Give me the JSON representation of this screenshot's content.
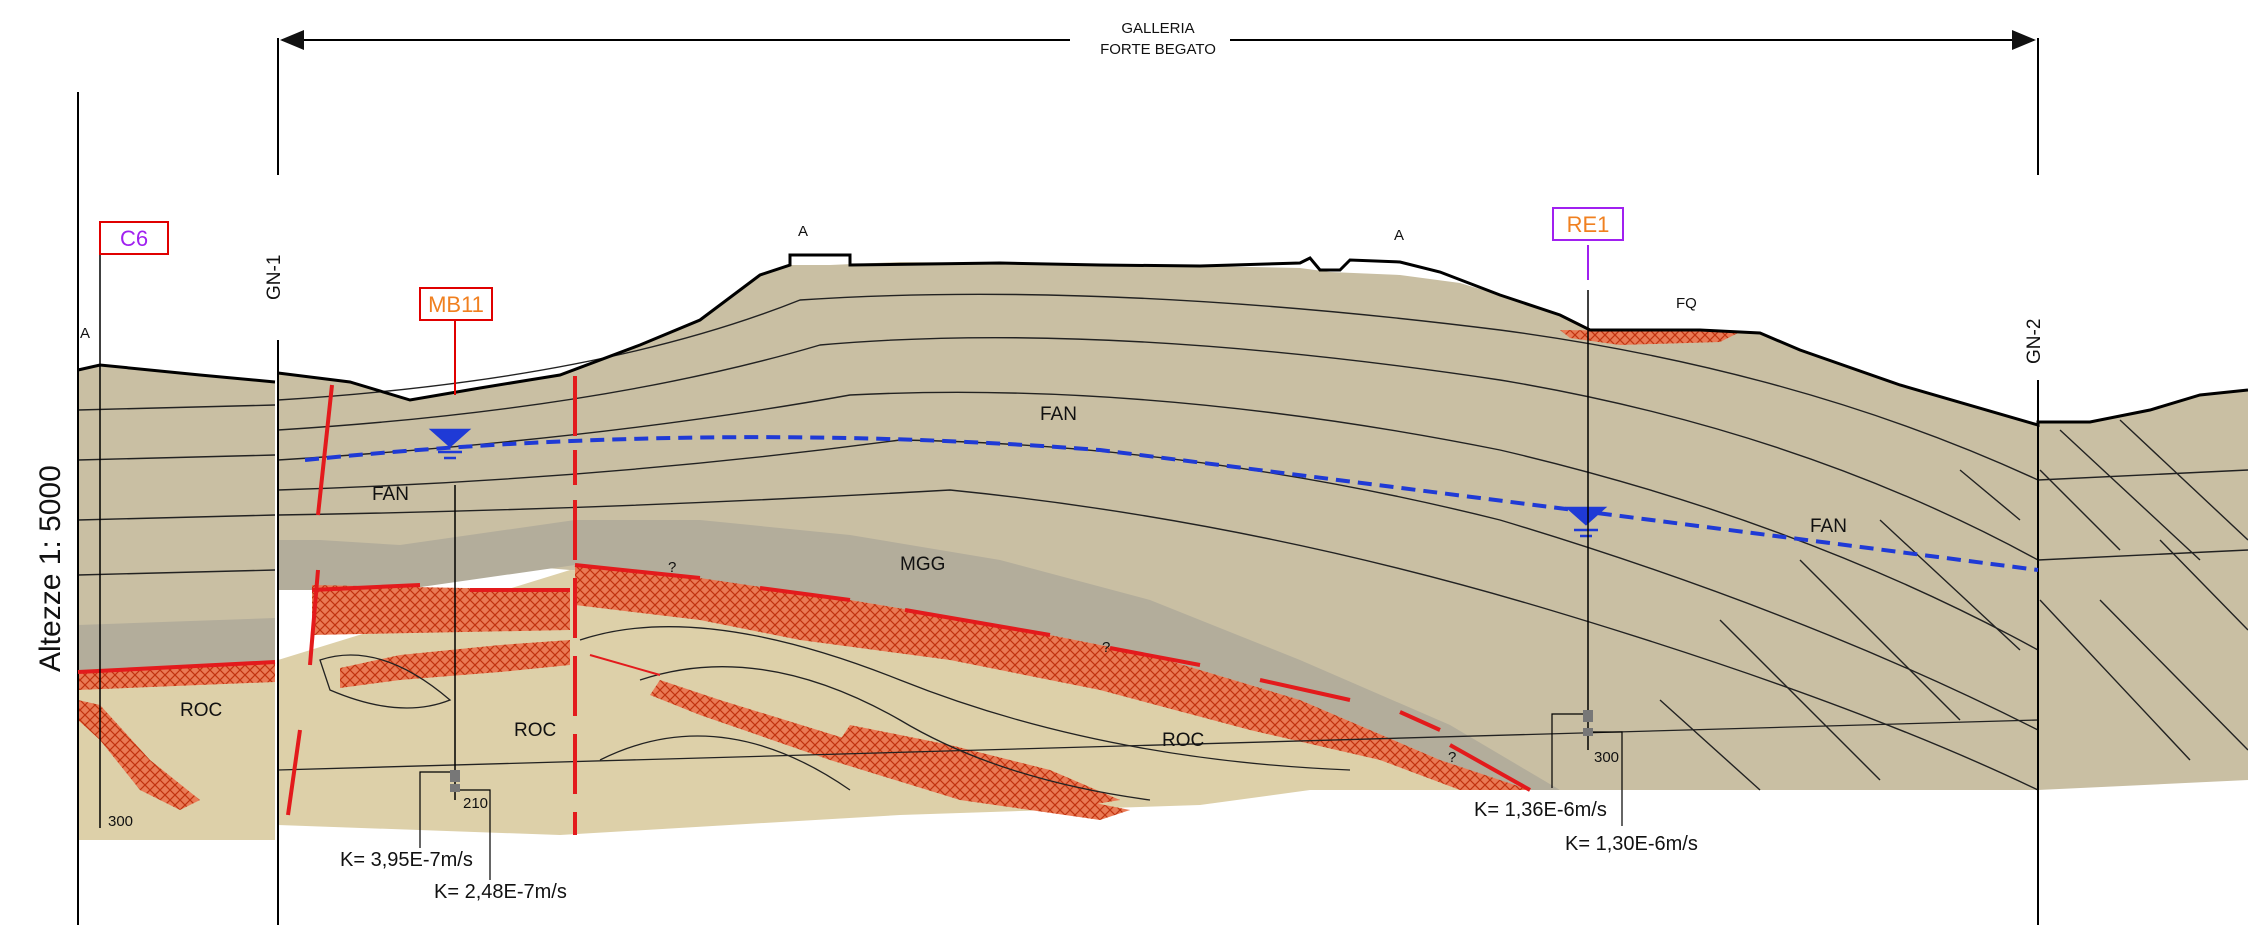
{
  "header": {
    "line1": "GALLERIA",
    "line2": "FORTE BEGATO"
  },
  "scale_label": "Altezze 1: 5000",
  "section_markers": {
    "start": "GN-1",
    "end": "GN-2"
  },
  "boreholes": [
    {
      "id": "C6",
      "text_color": "#a020f0",
      "border_color": "#e00000",
      "depth_label": "300"
    },
    {
      "id": "MB11",
      "text_color": "#f08020",
      "border_color": "#e00000",
      "depth_label": "210"
    },
    {
      "id": "RE1",
      "text_color": "#f08020",
      "border_color": "#a020f0",
      "depth_label": "300"
    }
  ],
  "formations": {
    "fan": "FAN",
    "mgg": "MGG",
    "roc": "ROC",
    "fq": "FQ"
  },
  "annotations": {
    "a": "A",
    "question": "?"
  },
  "permeability": [
    "K= 3,95E-7m/s",
    "K= 2,48E-7m/s",
    "K= 1,36E-6m/s",
    "K= 1,30E-6m/s"
  ],
  "colors": {
    "fan_fill": "#c9bfa3",
    "mgg_fill": "#b3ad9b",
    "roc_fill": "#ddd0a9",
    "hatch": "#e64a19",
    "water_table": "#1f3ad6",
    "fault": "#e31a1c"
  }
}
